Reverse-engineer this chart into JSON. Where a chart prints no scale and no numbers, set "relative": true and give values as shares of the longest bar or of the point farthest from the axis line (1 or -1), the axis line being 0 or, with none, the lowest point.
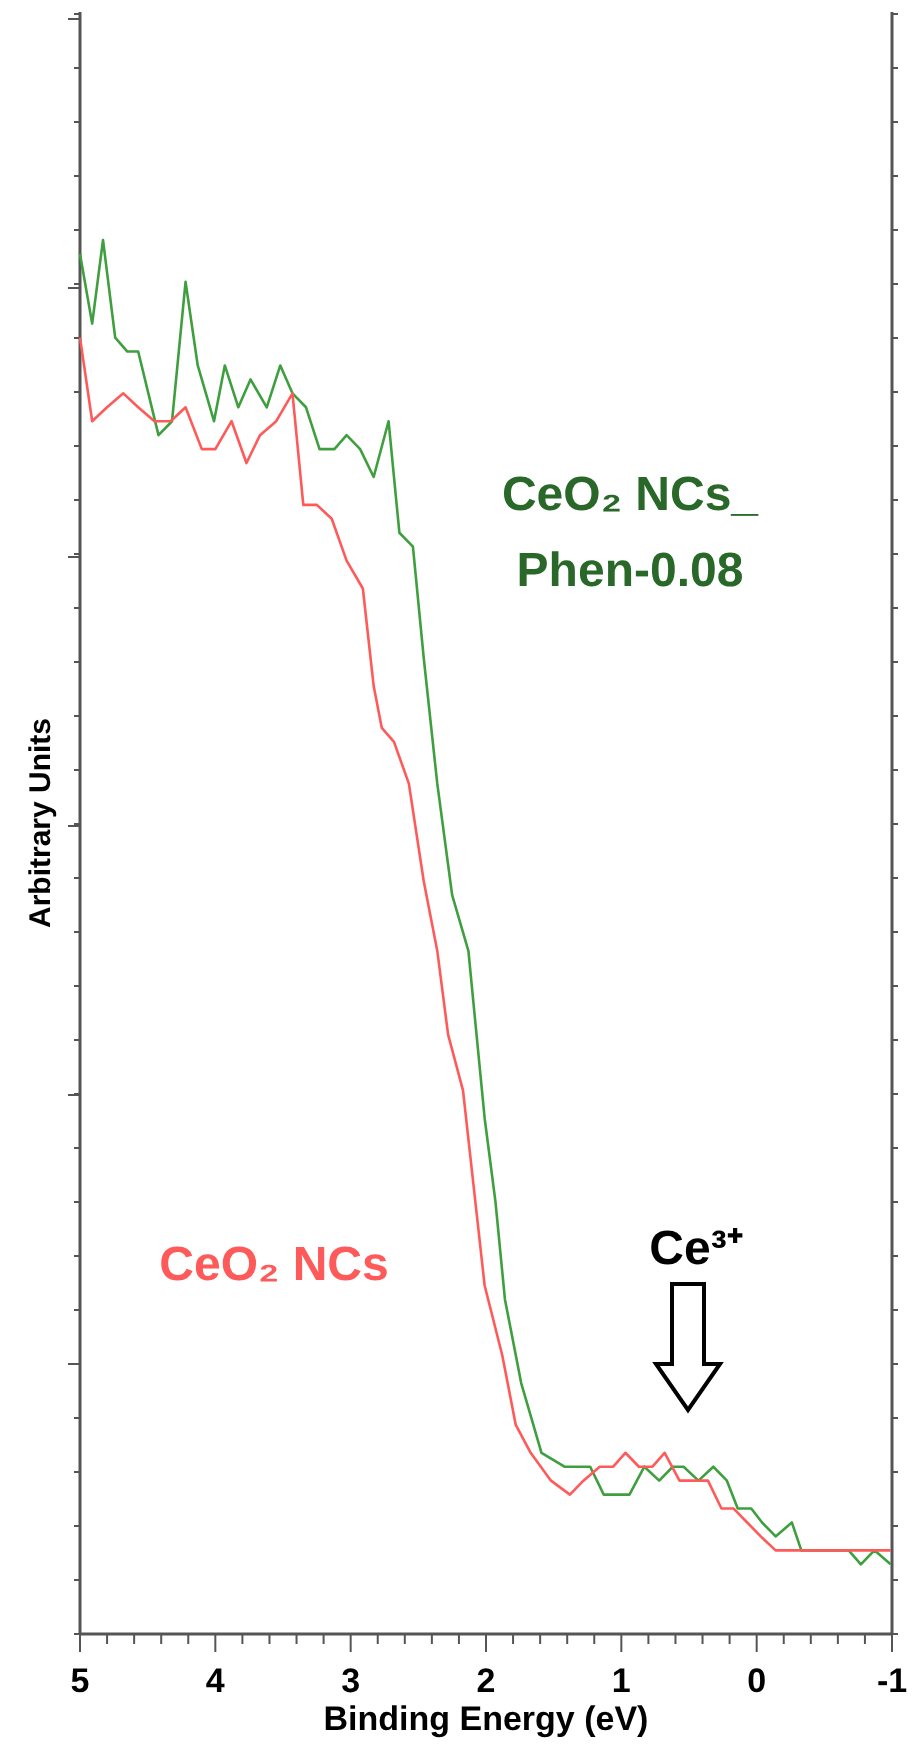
{
  "chart_data": {
    "type": "line",
    "xlabel": "Binding Energy (eV)",
    "ylabel": "Arbitrary Units",
    "relative": true,
    "legend": false,
    "grid": false,
    "marker": "none",
    "line_style": "solid",
    "xlim": [
      5,
      -1
    ],
    "xticks": [
      5,
      {
        "value": 4.8,
        "label": null
      },
      {
        "value": 4.6,
        "label": null
      },
      {
        "value": 4.4,
        "label": null
      },
      {
        "value": 4.2,
        "label": null
      },
      4,
      {
        "value": 3.8,
        "label": null
      },
      {
        "value": 3.6,
        "label": null
      },
      {
        "value": 3.4,
        "label": null
      },
      {
        "value": 3.2,
        "label": null
      },
      3,
      {
        "value": 2.8,
        "label": null
      },
      {
        "value": 2.6,
        "label": null
      },
      {
        "value": 2.4,
        "label": null
      },
      {
        "value": 2.2,
        "label": null
      },
      2,
      {
        "value": 1.8,
        "label": null
      },
      {
        "value": 1.6,
        "label": null
      },
      {
        "value": 1.4,
        "label": null
      },
      {
        "value": 1.2,
        "label": null
      },
      1,
      {
        "value": 0.8,
        "label": null
      },
      {
        "value": 0.6,
        "label": null
      },
      {
        "value": 0.4,
        "label": null
      },
      {
        "value": 0.2,
        "label": null
      },
      0,
      {
        "value": -0.2,
        "label": null
      },
      {
        "value": -0.4,
        "label": null
      },
      {
        "value": -0.6,
        "label": null
      },
      {
        "value": -0.8,
        "label": null
      },
      -1
    ],
    "annotations": [
      "Ce³⁺"
    ],
    "series": [
      {
        "name": "CeO₂ NCs_ Phen-0.08",
        "color": "#3f9f3f",
        "x": [
          5.0,
          4.91,
          4.83,
          4.74,
          4.65,
          4.57,
          4.42,
          4.32,
          4.22,
          4.13,
          4.01,
          3.93,
          3.83,
          3.74,
          3.62,
          3.52,
          3.43,
          3.33,
          3.23,
          3.12,
          3.03,
          2.93,
          2.83,
          2.72,
          2.64,
          2.54,
          2.46,
          2.36,
          2.25,
          2.13,
          2.01,
          1.93,
          1.86,
          1.74,
          1.59,
          1.42,
          1.23,
          1.13,
          1.04,
          0.94,
          0.83,
          0.72,
          0.62,
          0.54,
          0.43,
          0.32,
          0.22,
          0.14,
          0.04,
          -0.04,
          -0.14,
          -0.26,
          -0.33,
          -0.46,
          -0.55,
          -0.68,
          -0.77,
          -0.87,
          -0.99
        ],
        "values": [
          0.99,
          0.94,
          1.0,
          0.93,
          0.92,
          0.92,
          0.86,
          0.87,
          0.97,
          0.91,
          0.87,
          0.91,
          0.88,
          0.9,
          0.88,
          0.91,
          0.89,
          0.88,
          0.85,
          0.85,
          0.86,
          0.85,
          0.83,
          0.87,
          0.79,
          0.78,
          0.7,
          0.61,
          0.53,
          0.49,
          0.37,
          0.31,
          0.24,
          0.18,
          0.13,
          0.12,
          0.12,
          0.1,
          0.1,
          0.1,
          0.12,
          0.11,
          0.12,
          0.12,
          0.11,
          0.12,
          0.11,
          0.09,
          0.09,
          0.08,
          0.07,
          0.08,
          0.06,
          0.06,
          0.06,
          0.06,
          0.05,
          0.06,
          0.05
        ]
      },
      {
        "name": "CeO₂ NCs",
        "color": "#ff5a5a",
        "x": [
          5.0,
          4.91,
          4.8,
          4.68,
          4.57,
          4.45,
          4.33,
          4.22,
          4.1,
          4.0,
          3.88,
          3.77,
          3.67,
          3.55,
          3.43,
          3.35,
          3.25,
          3.14,
          3.03,
          2.91,
          2.83,
          2.77,
          2.68,
          2.57,
          2.46,
          2.36,
          2.28,
          2.17,
          2.01,
          1.88,
          1.78,
          1.67,
          1.52,
          1.38,
          1.28,
          1.16,
          1.06,
          0.97,
          0.87,
          0.77,
          0.68,
          0.57,
          0.46,
          0.36,
          0.26,
          0.17,
          0.07,
          -0.03,
          -0.14,
          -0.25,
          -0.33,
          -0.43,
          -0.55,
          -0.68,
          -0.8,
          -0.94,
          -0.99
        ],
        "values": [
          0.93,
          0.87,
          0.88,
          0.89,
          0.88,
          0.87,
          0.87,
          0.88,
          0.85,
          0.85,
          0.87,
          0.84,
          0.86,
          0.87,
          0.89,
          0.81,
          0.81,
          0.8,
          0.77,
          0.75,
          0.68,
          0.65,
          0.64,
          0.61,
          0.54,
          0.49,
          0.43,
          0.39,
          0.25,
          0.2,
          0.15,
          0.13,
          0.11,
          0.1,
          0.11,
          0.12,
          0.12,
          0.13,
          0.12,
          0.12,
          0.13,
          0.11,
          0.11,
          0.11,
          0.09,
          0.09,
          0.08,
          0.07,
          0.06,
          0.06,
          0.06,
          0.06,
          0.06,
          0.06,
          0.06,
          0.06,
          0.06
        ]
      }
    ]
  }
}
